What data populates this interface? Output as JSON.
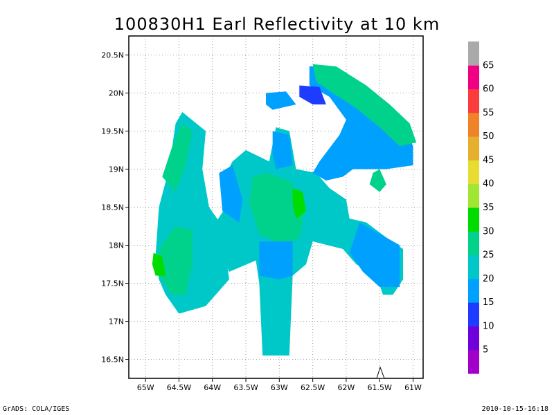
{
  "chart_data": {
    "type": "heatmap",
    "title": "100830H1 Earl Reflectivity at 10 km",
    "x_ticks": [
      "65W",
      "64.5W",
      "64W",
      "63.5W",
      "63W",
      "62.5W",
      "62W",
      "61.5W",
      "61W"
    ],
    "y_ticks": [
      "20.5N",
      "20N",
      "19.5N",
      "19N",
      "18.5N",
      "18N",
      "17.5N",
      "17N",
      "16.5N"
    ],
    "xlim": [
      -65.25,
      -60.85
    ],
    "ylim": [
      16.25,
      20.75
    ],
    "grid": true,
    "colorbar": {
      "colors": [
        "#a000c8",
        "#6e00dc",
        "#1e3cff",
        "#00a0ff",
        "#00c8c8",
        "#00d28c",
        "#00dc00",
        "#a0e632",
        "#e6dc32",
        "#e6af2d",
        "#f08228",
        "#fa3c3c",
        "#f00082",
        "#aaaaaa"
      ],
      "labels": [
        "5",
        "10",
        "15",
        "20",
        "25",
        "30",
        "35",
        "40",
        "45",
        "50",
        "55",
        "60",
        "65"
      ]
    },
    "regions": [
      {
        "name": "west-band",
        "level": 20,
        "points": [
          [
            -64.85,
            17.85
          ],
          [
            -64.8,
            18.5
          ],
          [
            -64.65,
            19.0
          ],
          [
            -64.55,
            19.6
          ],
          [
            -64.45,
            19.75
          ],
          [
            -64.1,
            19.5
          ],
          [
            -64.15,
            19.0
          ],
          [
            -64.05,
            18.5
          ],
          [
            -63.85,
            18.25
          ],
          [
            -63.75,
            17.55
          ],
          [
            -63.95,
            17.35
          ],
          [
            -64.1,
            17.2
          ],
          [
            -64.5,
            17.1
          ],
          [
            -64.7,
            17.35
          ],
          [
            -64.8,
            17.55
          ]
        ]
      },
      {
        "name": "west-band-core-north",
        "level": 25,
        "points": [
          [
            -64.75,
            18.9
          ],
          [
            -64.6,
            19.3
          ],
          [
            -64.45,
            19.6
          ],
          [
            -64.3,
            19.5
          ],
          [
            -64.4,
            19.05
          ],
          [
            -64.55,
            18.7
          ]
        ]
      },
      {
        "name": "west-band-core-south",
        "level": 25,
        "points": [
          [
            -64.8,
            17.95
          ],
          [
            -64.55,
            18.25
          ],
          [
            -64.3,
            18.2
          ],
          [
            -64.3,
            17.75
          ],
          [
            -64.4,
            17.35
          ],
          [
            -64.6,
            17.35
          ],
          [
            -64.8,
            17.6
          ]
        ]
      },
      {
        "name": "west-cell",
        "level": 30,
        "points": [
          [
            -64.88,
            17.9
          ],
          [
            -64.75,
            17.85
          ],
          [
            -64.7,
            17.6
          ],
          [
            -64.85,
            17.6
          ],
          [
            -64.9,
            17.75
          ]
        ]
      },
      {
        "name": "center-body",
        "level": 20,
        "points": [
          [
            -63.95,
            18.3
          ],
          [
            -63.95,
            18.1
          ],
          [
            -63.75,
            17.65
          ],
          [
            -63.35,
            17.8
          ],
          [
            -63.3,
            17.5
          ],
          [
            -63.25,
            16.55
          ],
          [
            -62.85,
            16.55
          ],
          [
            -62.8,
            17.6
          ],
          [
            -62.6,
            17.75
          ],
          [
            -62.5,
            18.05
          ],
          [
            -62.05,
            17.95
          ],
          [
            -61.85,
            17.75
          ],
          [
            -61.55,
            17.6
          ],
          [
            -61.45,
            17.35
          ],
          [
            -61.3,
            17.35
          ],
          [
            -61.15,
            17.55
          ],
          [
            -61.15,
            17.95
          ],
          [
            -61.4,
            18.1
          ],
          [
            -61.7,
            18.3
          ],
          [
            -61.95,
            18.35
          ],
          [
            -62.0,
            18.6
          ],
          [
            -62.25,
            18.75
          ],
          [
            -62.45,
            18.95
          ],
          [
            -62.75,
            19.0
          ],
          [
            -62.85,
            19.5
          ],
          [
            -63.05,
            19.55
          ],
          [
            -63.15,
            19.1
          ],
          [
            -63.5,
            19.25
          ],
          [
            -63.7,
            19.1
          ],
          [
            -63.85,
            18.85
          ],
          [
            -63.8,
            18.5
          ]
        ]
      },
      {
        "name": "center-cyan",
        "level": 25,
        "points": [
          [
            -63.4,
            18.9
          ],
          [
            -63.2,
            18.95
          ],
          [
            -62.85,
            18.85
          ],
          [
            -62.6,
            18.5
          ],
          [
            -62.7,
            18.1
          ],
          [
            -62.95,
            18.0
          ],
          [
            -63.3,
            18.15
          ],
          [
            -63.45,
            18.55
          ]
        ]
      },
      {
        "name": "center-green",
        "level": 30,
        "points": [
          [
            -62.8,
            18.75
          ],
          [
            -62.65,
            18.7
          ],
          [
            -62.6,
            18.45
          ],
          [
            -62.75,
            18.35
          ],
          [
            -62.8,
            18.55
          ]
        ]
      },
      {
        "name": "center-blue-top",
        "level": 15,
        "points": [
          [
            -63.1,
            19.5
          ],
          [
            -62.85,
            19.45
          ],
          [
            -62.8,
            19.05
          ],
          [
            -63.05,
            19.0
          ],
          [
            -63.1,
            19.2
          ]
        ]
      },
      {
        "name": "center-blue-left",
        "level": 15,
        "points": [
          [
            -63.9,
            18.95
          ],
          [
            -63.7,
            19.05
          ],
          [
            -63.55,
            18.6
          ],
          [
            -63.6,
            18.3
          ],
          [
            -63.85,
            18.45
          ]
        ]
      },
      {
        "name": "center-blue-south",
        "level": 15,
        "points": [
          [
            -63.3,
            18.05
          ],
          [
            -62.8,
            18.05
          ],
          [
            -62.8,
            17.6
          ],
          [
            -63.0,
            17.55
          ],
          [
            -63.3,
            17.6
          ]
        ]
      },
      {
        "name": "east-cell",
        "level": 15,
        "points": [
          [
            -61.8,
            18.3
          ],
          [
            -61.2,
            18.0
          ],
          [
            -61.2,
            17.45
          ],
          [
            -61.5,
            17.45
          ],
          [
            -61.75,
            17.65
          ],
          [
            -61.95,
            17.9
          ]
        ]
      },
      {
        "name": "north-arc",
        "level": 15,
        "points": [
          [
            -62.55,
            20.35
          ],
          [
            -62.25,
            20.35
          ],
          [
            -61.75,
            20.1
          ],
          [
            -61.45,
            19.9
          ],
          [
            -61.15,
            19.6
          ],
          [
            -61.0,
            19.3
          ],
          [
            -61.0,
            19.05
          ],
          [
            -61.4,
            19.0
          ],
          [
            -61.9,
            19.0
          ],
          [
            -62.05,
            18.9
          ],
          [
            -62.3,
            18.85
          ],
          [
            -62.5,
            18.95
          ],
          [
            -62.4,
            19.1
          ],
          [
            -62.1,
            19.45
          ],
          [
            -62.0,
            19.65
          ],
          [
            -62.25,
            19.95
          ],
          [
            -62.55,
            20.1
          ]
        ]
      },
      {
        "name": "north-arc-outer",
        "level": 25,
        "points": [
          [
            -62.5,
            20.38
          ],
          [
            -62.15,
            20.35
          ],
          [
            -61.7,
            20.1
          ],
          [
            -61.35,
            19.85
          ],
          [
            -61.05,
            19.6
          ],
          [
            -60.95,
            19.35
          ],
          [
            -61.2,
            19.3
          ],
          [
            -61.5,
            19.55
          ],
          [
            -61.85,
            19.8
          ],
          [
            -62.2,
            20.0
          ],
          [
            -62.45,
            20.15
          ]
        ]
      },
      {
        "name": "north-arc-tail",
        "level": 25,
        "points": [
          [
            -61.6,
            18.95
          ],
          [
            -61.5,
            19.0
          ],
          [
            -61.4,
            18.8
          ],
          [
            -61.5,
            18.7
          ],
          [
            -61.65,
            18.8
          ]
        ]
      },
      {
        "name": "north-purple",
        "level": 10,
        "points": [
          [
            -62.7,
            20.1
          ],
          [
            -62.4,
            20.08
          ],
          [
            -62.3,
            19.85
          ],
          [
            -62.5,
            19.85
          ],
          [
            -62.7,
            19.95
          ]
        ]
      },
      {
        "name": "north-blob",
        "level": 15,
        "points": [
          [
            -63.2,
            20.0
          ],
          [
            -62.9,
            20.02
          ],
          [
            -62.75,
            19.85
          ],
          [
            -63.1,
            19.78
          ],
          [
            -63.2,
            19.85
          ]
        ]
      }
    ]
  },
  "footer": {
    "left": "GrADS: COLA/IGES",
    "right": "2010-10-15-16:18"
  }
}
